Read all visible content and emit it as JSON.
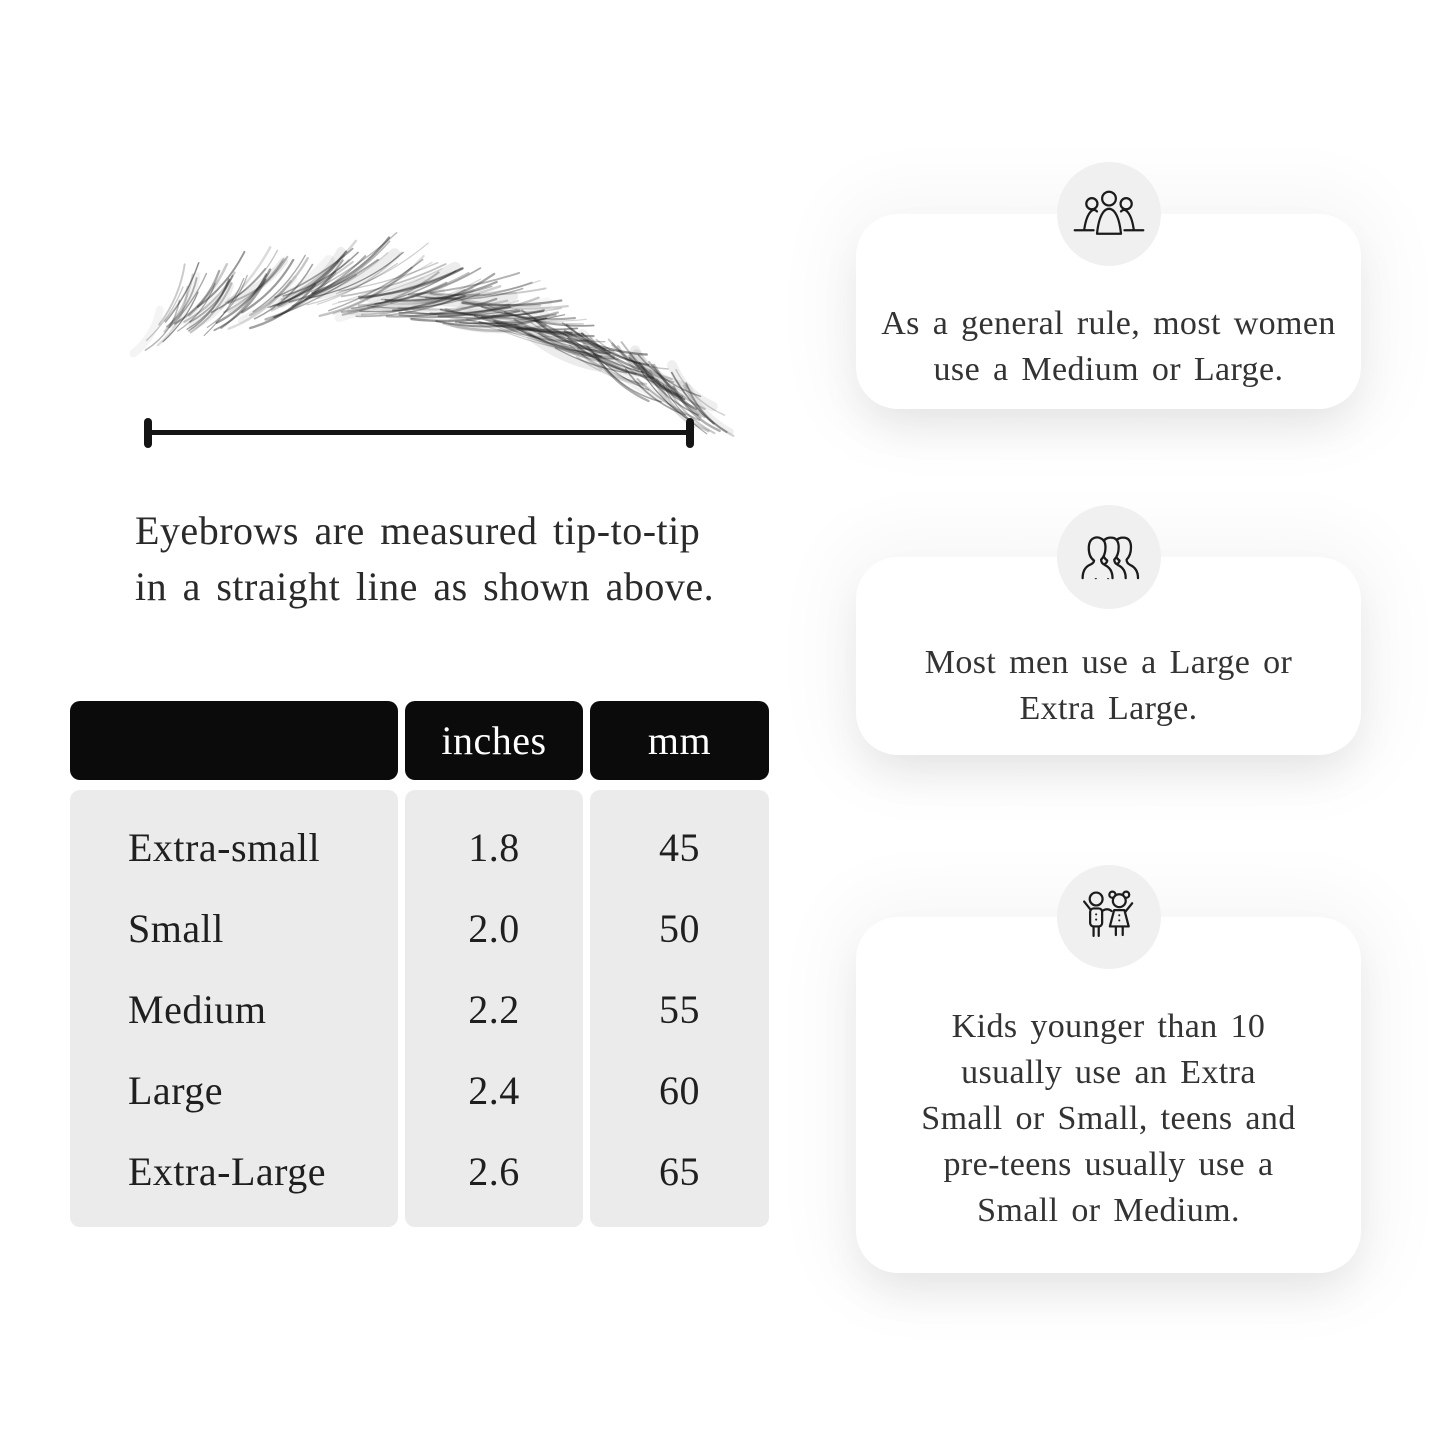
{
  "figure": {
    "caption": "Eyebrows are measured tip-to-tip\nin a straight line as shown above."
  },
  "table": {
    "headers": {
      "size": "",
      "inches": "inches",
      "mm": "mm"
    },
    "rows": [
      {
        "label": "Extra-small",
        "inches": "1.8",
        "mm": "45"
      },
      {
        "label": "Small",
        "inches": "2.0",
        "mm": "50"
      },
      {
        "label": "Medium",
        "inches": "2.2",
        "mm": "55"
      },
      {
        "label": "Large",
        "inches": "2.4",
        "mm": "60"
      },
      {
        "label": "Extra-Large",
        "inches": "2.6",
        "mm": "65"
      }
    ]
  },
  "cards": [
    {
      "icon": "women-group-icon",
      "text": "As a general rule, most women\nuse a Medium or Large."
    },
    {
      "icon": "men-group-icon",
      "text": "Most men use a Large or\nExtra Large."
    },
    {
      "icon": "kids-icon",
      "text": "Kids younger than 10\nusually use an Extra\nSmall or Small, teens and\npre-teens usually use a\nSmall or Medium."
    }
  ],
  "colors": {
    "table_header_bg": "#0b0b0b",
    "table_header_text": "#ffffff",
    "table_body_bg": "#ebebeb",
    "icon_circle_bg": "#f0f0f1",
    "ink": "#2c2c2c",
    "ruler": "#141414"
  }
}
